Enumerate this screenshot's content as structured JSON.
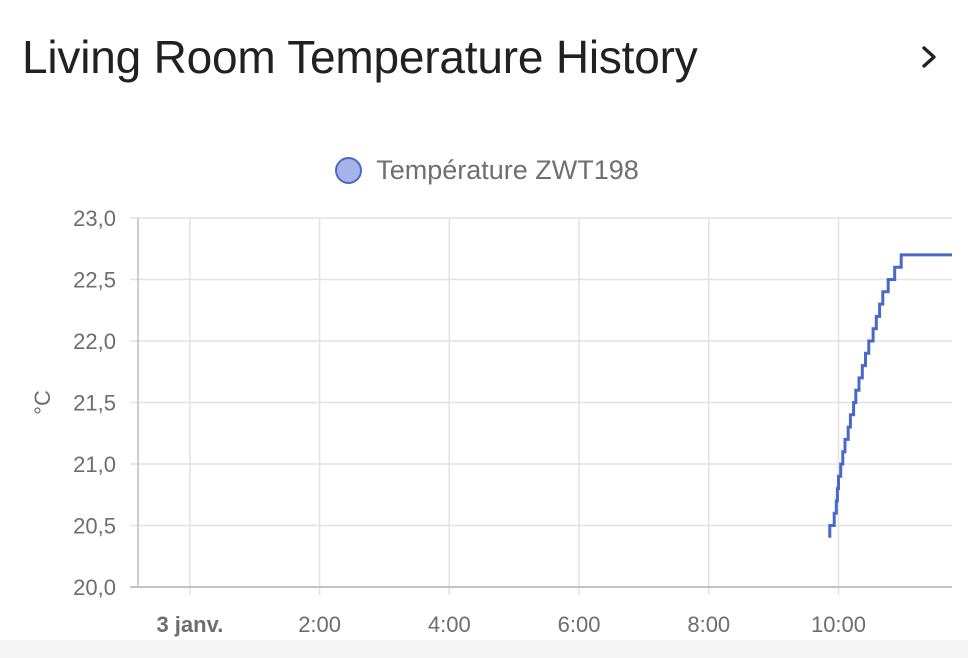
{
  "card": {
    "title": "Living Room Temperature History",
    "more_icon": "chevron-right-icon"
  },
  "colors": {
    "series_line": "#4a68c7",
    "series_fill": "#a5b3e6",
    "grid": "#e2e2e2",
    "axis": "#bdbdbd"
  },
  "chart_data": {
    "type": "line",
    "step": true,
    "ylabel": "°C",
    "ylim": [
      20.0,
      23.0
    ],
    "yticks": [
      "20,0",
      "20,5",
      "21,0",
      "21,5",
      "22,0",
      "22,5",
      "23,0"
    ],
    "x_start": "3 janv. 00:00",
    "xlim_hours": [
      -0.8,
      11.75
    ],
    "xticks": [
      {
        "label": "3 janv.",
        "hour": 0,
        "bold": true
      },
      {
        "label": "2:00",
        "hour": 2
      },
      {
        "label": "4:00",
        "hour": 4
      },
      {
        "label": "6:00",
        "hour": 6
      },
      {
        "label": "8:00",
        "hour": 8
      },
      {
        "label": "10:00",
        "hour": 10
      }
    ],
    "grid": true,
    "legend_position": "top",
    "series": [
      {
        "name": "Température ZWT198",
        "x": [
          "09:52",
          "09:56",
          "09:58",
          "09:59",
          "10:00",
          "10:02",
          "10:04",
          "10:06",
          "10:09",
          "10:11",
          "10:14",
          "10:16",
          "10:19",
          "10:22",
          "10:25",
          "10:28",
          "10:32",
          "10:35",
          "10:38",
          "10:41",
          "10:44",
          "10:46",
          "10:49",
          "10:52",
          "10:55",
          "10:58",
          "11:01",
          "11:05",
          "11:10",
          "11:13"
        ],
        "y": [
          20.4,
          20.5,
          20.6,
          20.7,
          20.8,
          20.9,
          21.0,
          21.1,
          21.2,
          21.3,
          21.4,
          21.5,
          21.6,
          21.7,
          21.8,
          21.9,
          22.0,
          22.1,
          22.2,
          22.3,
          22.4,
          22.4,
          22.5,
          22.5,
          22.6,
          22.6,
          22.7,
          22.7,
          22.7,
          22.7
        ]
      }
    ]
  }
}
